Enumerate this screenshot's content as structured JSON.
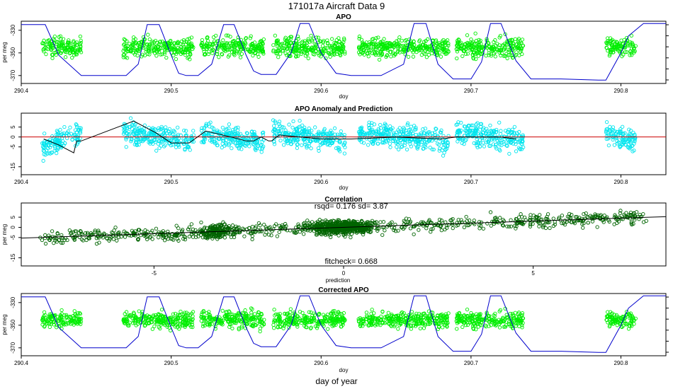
{
  "figure": {
    "title": "171017a   Aircraft Data 9",
    "bottom_label": "day of year"
  },
  "colors": {
    "apo_points": "#00ee00",
    "anomaly_points": "#00e5ee",
    "correlation_points": "#006400",
    "altitude_line": "#0000cc",
    "zero_line": "#cc0000",
    "fit_line": "#000000",
    "axis": "#000000"
  },
  "chart_data": [
    {
      "id": "apo",
      "type": "scatter",
      "title": "APO",
      "xlabel": "doy",
      "ylabel": "per meg",
      "xlim": [
        290.4,
        290.83
      ],
      "ylim": [
        -377,
        -322
      ],
      "xticks": [
        290.4,
        290.5,
        290.6,
        290.7,
        290.8
      ],
      "xtick_labels": [
        "290.4",
        "290.5",
        "290.6",
        "290.7",
        "290.8"
      ],
      "yticks": [
        -330,
        -350,
        -370
      ],
      "ytick_labels": [
        "-330",
        "-350",
        "-370"
      ],
      "right_axis_ticks": 6,
      "series": [
        {
          "name": "APO",
          "kind": "points",
          "color_key": "apo_points",
          "center": -345,
          "spread": 6
        },
        {
          "name": "altitude",
          "kind": "line",
          "color_key": "altitude_line",
          "x": [
            290.4,
            290.416,
            290.425,
            290.44,
            290.47,
            290.478,
            290.484,
            290.492,
            290.5,
            290.505,
            290.51,
            290.518,
            290.527,
            290.535,
            290.542,
            290.55,
            290.555,
            290.56,
            290.57,
            290.58,
            290.586,
            290.592,
            290.6,
            290.61,
            290.62,
            290.64,
            290.655,
            290.662,
            290.67,
            290.678,
            290.688,
            290.7,
            290.707,
            290.713,
            290.72,
            290.73,
            290.74,
            290.76,
            290.785,
            290.79,
            290.8,
            290.805,
            290.815,
            290.83
          ],
          "y": [
            -325,
            -325,
            -352,
            -370,
            -370,
            -360,
            -325,
            -325,
            -352,
            -368,
            -370,
            -370,
            -360,
            -325,
            -325,
            -352,
            -366,
            -369,
            -369,
            -350,
            -324,
            -324,
            -350,
            -368,
            -370,
            -370,
            -360,
            -324,
            -324,
            -360,
            -373,
            -373,
            -358,
            -324,
            -324,
            -357,
            -373,
            -373,
            -374,
            -374,
            -350,
            -335,
            -324,
            -324
          ]
        }
      ]
    },
    {
      "id": "anomaly",
      "type": "scatter",
      "title": "APO Anomaly and Prediction",
      "xlabel": "doy",
      "ylabel": "",
      "xlim": [
        290.4,
        290.83
      ],
      "ylim": [
        -19,
        12
      ],
      "xticks": [
        290.4,
        290.5,
        290.6,
        290.7,
        290.8
      ],
      "xtick_labels": [
        "290.4",
        "290.5",
        "290.6",
        "290.7",
        "290.8"
      ],
      "yticks": [
        5,
        0,
        -5,
        -15
      ],
      "ytick_labels": [
        "5",
        "0",
        "-5",
        "-15"
      ],
      "series": [
        {
          "name": "anomaly",
          "kind": "points",
          "color_key": "anomaly_points",
          "center": 0,
          "spread": 4
        },
        {
          "name": "zero",
          "kind": "hline",
          "color_key": "zero_line",
          "y": 0
        },
        {
          "name": "prediction",
          "kind": "line",
          "color_key": "fit_line",
          "x": [
            290.415,
            290.425,
            290.435,
            290.437,
            290.44,
            290.475,
            290.49,
            290.5,
            290.51,
            290.512,
            290.523,
            290.54,
            290.55,
            290.555,
            290.56,
            290.565,
            290.567,
            290.572,
            290.6,
            290.608,
            290.615,
            290.616,
            290.62,
            290.65,
            290.68,
            290.69,
            290.72,
            290.73
          ],
          "y": [
            -1,
            -4,
            -8,
            -2,
            -2,
            8,
            2,
            -3,
            -3,
            -3,
            3,
            0,
            -2,
            -2,
            0,
            -2,
            -2,
            1,
            -1,
            -1,
            -1,
            -1,
            -1,
            0,
            -1,
            0,
            0,
            -1
          ]
        }
      ]
    },
    {
      "id": "correlation",
      "type": "scatter",
      "title": "Correlation",
      "xlabel": "prediction",
      "ylabel": "per meg",
      "xlim": [
        -8.5,
        8.5
      ],
      "ylim": [
        -19,
        12
      ],
      "xticks": [
        -5,
        0,
        5
      ],
      "xtick_labels": [
        "-5",
        "0",
        "5"
      ],
      "yticks": [
        5,
        0,
        -5,
        -15
      ],
      "ytick_labels": [
        "5",
        "0",
        "-5",
        "-15"
      ],
      "annotations": {
        "rsqd": "rsqd= 0.176 sd= 3.87",
        "fitcheck": "fitcheck= 0.668"
      },
      "fit": {
        "slope": 0.62,
        "intercept": 0.0
      },
      "series": [
        {
          "name": "observed vs prediction",
          "kind": "points",
          "color_key": "correlation_points",
          "spread": 4
        }
      ]
    },
    {
      "id": "corrected",
      "type": "scatter",
      "title": "Corrected APO",
      "xlabel": "doy",
      "ylabel": "per meg",
      "xlim": [
        290.4,
        290.83
      ],
      "ylim": [
        -377,
        -322
      ],
      "xticks": [
        290.4,
        290.5,
        290.6,
        290.7,
        290.8
      ],
      "xtick_labels": [
        "290.4",
        "290.5",
        "290.6",
        "290.7",
        "290.8"
      ],
      "yticks": [
        -330,
        -350,
        -370
      ],
      "ytick_labels": [
        "-330",
        "-350",
        "-370"
      ],
      "right_axis_ticks": 6,
      "series": [
        {
          "name": "corrected APO",
          "kind": "points",
          "color_key": "apo_points",
          "center": -345,
          "spread": 5
        },
        {
          "name": "altitude",
          "kind": "line",
          "color_key": "altitude_line",
          "same_as": "apo"
        }
      ]
    }
  ],
  "segments": [
    [
      290.414,
      290.44
    ],
    [
      290.468,
      290.515
    ],
    [
      290.52,
      290.562
    ],
    [
      290.568,
      290.616
    ],
    [
      290.625,
      290.685
    ],
    [
      290.69,
      290.735
    ],
    [
      290.79,
      290.81
    ]
  ]
}
